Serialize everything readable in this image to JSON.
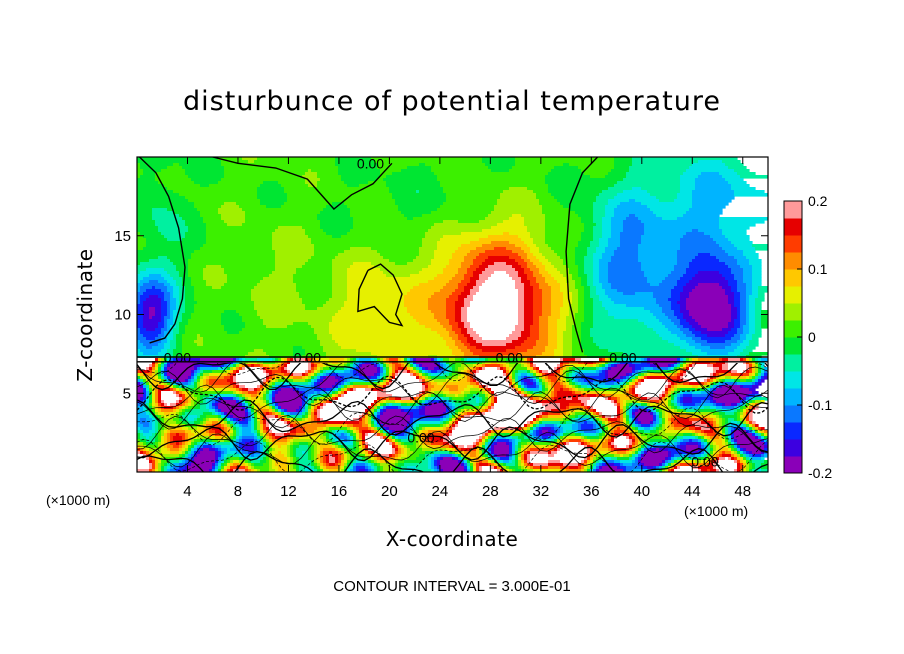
{
  "chart_data": {
    "type": "heatmap",
    "title": "disturbunce of potential temperature",
    "xlabel": "X-coordinate",
    "ylabel": "Z-coordinate",
    "x_unit": "(×1000 m)",
    "footer": "CONTOUR INTERVAL = 3.000E-01",
    "xlim": [
      0,
      50
    ],
    "ylim": [
      0,
      20
    ],
    "x_ticks": [
      4,
      8,
      12,
      16,
      20,
      24,
      28,
      32,
      36,
      40,
      44,
      48
    ],
    "y_ticks": [
      5,
      10,
      15
    ],
    "colorbar": {
      "range": [
        -0.2,
        0.2
      ],
      "ticks": [
        "0.2",
        "0.1",
        "0",
        "-0.1",
        "-0.2"
      ],
      "tick_values": [
        0.2,
        0.1,
        0,
        -0.1,
        -0.2
      ]
    },
    "contour_interval": 0.3,
    "contour_labels": [
      {
        "text": "0.00",
        "x": 18.5,
        "y": 19.5
      },
      {
        "text": "0.00",
        "x": 3.2,
        "y": 7.2
      },
      {
        "text": "0.00",
        "x": 13.5,
        "y": 7.2
      },
      {
        "text": "0.00",
        "x": 29.5,
        "y": 7.2
      },
      {
        "text": "0.00",
        "x": 38.5,
        "y": 7.2
      },
      {
        "text": "0.00",
        "x": 22.5,
        "y": 2.1
      },
      {
        "text": "0.00",
        "x": 45.0,
        "y": 0.6
      }
    ],
    "features": [
      {
        "name": "warm anomaly",
        "x": 28,
        "z": 10,
        "value": 0.2
      },
      {
        "name": "cool anomaly",
        "x": 45,
        "z": 10,
        "value": -0.2
      },
      {
        "name": "cool anomaly",
        "x": 0.5,
        "z": 10,
        "value": -0.15
      }
    ]
  },
  "colors": {
    "palette": [
      "#8a00b8",
      "#3c00e0",
      "#0a28ff",
      "#0a78ff",
      "#00b4ff",
      "#00e6e6",
      "#00f0a0",
      "#00e632",
      "#3cf000",
      "#a0f000",
      "#e6f000",
      "#ffc800",
      "#ff8c00",
      "#ff3c00",
      "#e60000",
      "#ff9a9a"
    ],
    "contour": "#000000"
  }
}
